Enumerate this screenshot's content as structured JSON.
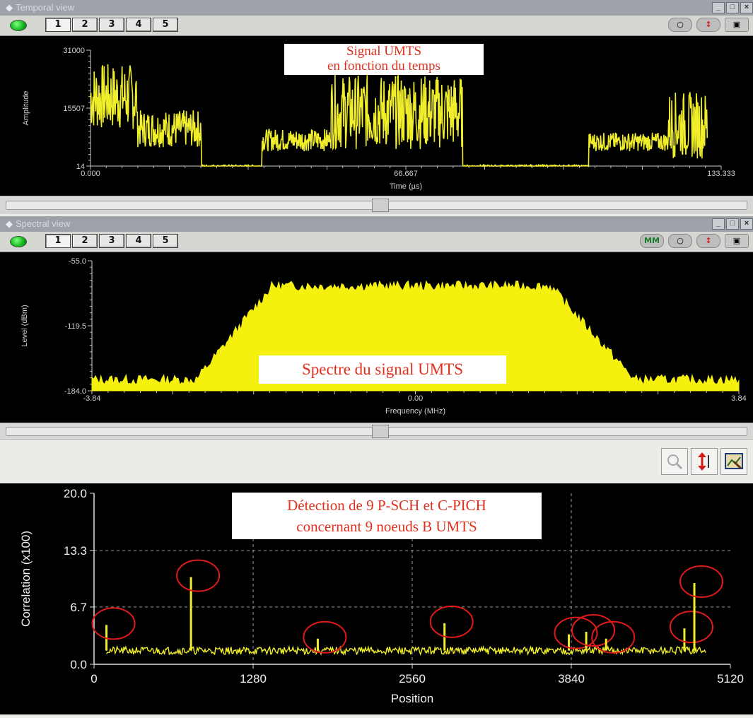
{
  "temporal": {
    "window_title": "Temporal view",
    "tabs": [
      "1",
      "2",
      "3",
      "4",
      "5"
    ],
    "active_tab": "1",
    "annotation": [
      "Signal UMTS",
      "en fonction du temps"
    ],
    "chart_data": {
      "type": "line",
      "xlabel": "Time (µs)",
      "ylabel": "Amplitude",
      "x_ticks": [
        "0.000",
        "66.667",
        "133.333"
      ],
      "y_ticks": [
        "31000",
        "15507",
        "14"
      ],
      "xlim": [
        0,
        133.333
      ],
      "ylim": [
        14,
        31000
      ],
      "color": "#f0ee2a",
      "segments": [
        {
          "x_start": 0,
          "x_end": 9.9,
          "level": 18500,
          "spread": 9000
        },
        {
          "x_start": 9.9,
          "x_end": 23.5,
          "level": 10000,
          "spread": 5000
        },
        {
          "x_start": 23.5,
          "x_end": 36.3,
          "level": 14,
          "spread": 300
        },
        {
          "x_start": 36.3,
          "x_end": 50.6,
          "level": 7000,
          "spread": 3000
        },
        {
          "x_start": 50.6,
          "x_end": 78.7,
          "level": 14500,
          "spread": 10000
        },
        {
          "x_start": 78.7,
          "x_end": 105.4,
          "level": 14,
          "spread": 300
        },
        {
          "x_start": 105.4,
          "x_end": 122.0,
          "level": 6500,
          "spread": 2500
        },
        {
          "x_start": 122.0,
          "x_end": 130.5,
          "level": 11000,
          "spread": 9000
        }
      ]
    }
  },
  "spectral": {
    "window_title": "Spectral view",
    "tabs": [
      "1",
      "2",
      "3",
      "4",
      "5"
    ],
    "active_tab": "1",
    "annotation": [
      "Spectre du signal UMTS"
    ],
    "tool_mm": "MM",
    "chart_data": {
      "type": "area",
      "xlabel": "Frequency (MHz)",
      "ylabel": "Level (dBm)",
      "x_ticks": [
        "-3.84",
        "0.00",
        "3.84"
      ],
      "y_ticks": [
        "-55.0",
        "-119.5",
        "-184.0"
      ],
      "xlim": [
        -3.84,
        3.84
      ],
      "ylim": [
        -184,
        -55
      ],
      "color": "#f5f00e",
      "envelope": {
        "floor": -173,
        "plateau": -80,
        "rise_start": -2.6,
        "rise_end": -1.7,
        "fall_start": 1.6,
        "fall_end": 2.6
      }
    }
  },
  "correlation": {
    "annotation": [
      "Détection de 9 P-SCH et C-PICH",
      "concernant 9 noeuds B UMTS"
    ],
    "chart_data": {
      "type": "line",
      "xlabel": "Position",
      "ylabel": "Correlation (x100)",
      "x_ticks": [
        "0",
        "1280",
        "2560",
        "3840",
        "5120"
      ],
      "y_ticks": [
        "20.0",
        "13.3",
        "6.7",
        "0.0"
      ],
      "xlim": [
        0,
        5120
      ],
      "ylim": [
        0,
        20
      ],
      "grid": true,
      "baseline": 1.6,
      "color": "#f0ee2a",
      "peaks": [
        {
          "x": 100,
          "y": 4.6
        },
        {
          "x": 780,
          "y": 10.2
        },
        {
          "x": 1800,
          "y": 3.0
        },
        {
          "x": 2820,
          "y": 4.8
        },
        {
          "x": 3820,
          "y": 3.5
        },
        {
          "x": 3960,
          "y": 3.8
        },
        {
          "x": 4120,
          "y": 3.0
        },
        {
          "x": 4750,
          "y": 4.2
        },
        {
          "x": 4830,
          "y": 9.5
        }
      ]
    }
  }
}
